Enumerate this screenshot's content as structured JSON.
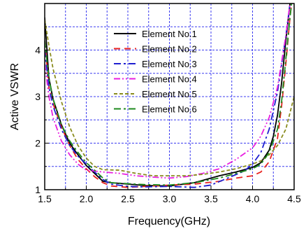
{
  "chart_data": {
    "type": "line",
    "xlabel": "Frequency(GHz)",
    "ylabel": "Active VSWR",
    "xlim": [
      1.5,
      4.5
    ],
    "ylim": [
      1,
      5
    ],
    "xticks": [
      "1.5",
      "2.0",
      "2.5",
      "3.0",
      "3.5",
      "4.0",
      "4.5"
    ],
    "yticks": [
      "1",
      "2",
      "3",
      "4"
    ],
    "grid": true,
    "legend_position": "upper-center",
    "series": [
      {
        "name": "Element No.1",
        "color": "#000000",
        "dash": "solid",
        "x": [
          1.5,
          1.55,
          1.6,
          1.7,
          1.8,
          1.9,
          2.0,
          2.1,
          2.2,
          2.3,
          2.5,
          2.7,
          3.0,
          3.3,
          3.6,
          3.8,
          4.0,
          4.1,
          4.2,
          4.25,
          4.3,
          4.35,
          4.4,
          4.45,
          4.5
        ],
        "y": [
          4.7,
          3.4,
          2.95,
          2.4,
          2.0,
          1.75,
          1.52,
          1.35,
          1.18,
          1.15,
          1.12,
          1.09,
          1.08,
          1.15,
          1.3,
          1.38,
          1.48,
          1.58,
          1.85,
          2.15,
          2.6,
          3.3,
          4.2,
          5.0,
          5.5
        ]
      },
      {
        "name": "Element No.2",
        "color": "#e8221f",
        "dash": "dash",
        "x": [
          1.5,
          1.55,
          1.6,
          1.7,
          1.8,
          1.9,
          2.0,
          2.1,
          2.2,
          2.3,
          2.5,
          2.7,
          3.0,
          3.3,
          3.6,
          3.8,
          4.0,
          4.1,
          4.2,
          4.3,
          4.35,
          4.4,
          4.45,
          4.5
        ],
        "y": [
          4.2,
          3.2,
          2.85,
          2.35,
          1.95,
          1.65,
          1.45,
          1.28,
          1.15,
          1.08,
          1.05,
          1.07,
          1.1,
          1.12,
          1.18,
          1.25,
          1.3,
          1.38,
          1.6,
          2.1,
          2.8,
          3.7,
          4.7,
          5.5
        ]
      },
      {
        "name": "Element No.3",
        "color": "#1f1fd0",
        "dash": "dashdot",
        "x": [
          1.5,
          1.55,
          1.6,
          1.7,
          1.8,
          1.9,
          2.0,
          2.1,
          2.2,
          2.3,
          2.5,
          2.7,
          3.0,
          3.3,
          3.5,
          3.7,
          3.9,
          4.0,
          4.1,
          4.2,
          4.3,
          4.4,
          4.45,
          4.5
        ],
        "y": [
          4.0,
          3.2,
          2.8,
          2.3,
          1.95,
          1.72,
          1.55,
          1.38,
          1.22,
          1.12,
          1.07,
          1.06,
          1.07,
          1.05,
          1.1,
          1.25,
          1.4,
          1.55,
          1.8,
          2.3,
          3.1,
          4.3,
          5.0,
          5.5
        ]
      },
      {
        "name": "Element No.4",
        "color": "#e81fe0",
        "dash": "dashdotdot",
        "x": [
          1.5,
          1.55,
          1.6,
          1.7,
          1.8,
          1.9,
          2.0,
          2.2,
          2.4,
          2.6,
          2.8,
          3.0,
          3.2,
          3.4,
          3.6,
          3.8,
          4.0,
          4.1,
          4.2,
          4.3,
          4.4,
          4.45,
          4.5
        ],
        "y": [
          3.7,
          3.0,
          2.55,
          2.05,
          1.75,
          1.55,
          1.42,
          1.38,
          1.35,
          1.3,
          1.27,
          1.25,
          1.28,
          1.35,
          1.45,
          1.65,
          1.9,
          2.15,
          2.55,
          3.2,
          4.3,
          5.0,
          5.5
        ]
      },
      {
        "name": "Element No.5",
        "color": "#8a8c1e",
        "dash": "shortdash",
        "x": [
          1.5,
          1.55,
          1.6,
          1.7,
          1.8,
          1.9,
          2.0,
          2.1,
          2.2,
          2.4,
          2.6,
          2.8,
          3.0,
          3.2,
          3.4,
          3.6,
          3.8,
          4.0,
          4.1,
          4.2,
          4.3,
          4.4,
          4.5
        ],
        "y": [
          4.65,
          4.1,
          3.6,
          2.9,
          2.35,
          1.95,
          1.68,
          1.5,
          1.43,
          1.42,
          1.35,
          1.3,
          1.3,
          1.3,
          1.33,
          1.38,
          1.45,
          1.55,
          1.62,
          1.75,
          1.95,
          2.3,
          3.0
        ]
      },
      {
        "name": "Element No.6",
        "color": "#1e8a1e",
        "dash": "dashdot",
        "x": [
          1.5,
          1.55,
          1.6,
          1.7,
          1.8,
          1.9,
          2.0,
          2.1,
          2.2,
          2.3,
          2.5,
          2.7,
          3.0,
          3.3,
          3.6,
          3.8,
          4.0,
          4.1,
          4.2,
          4.3,
          4.35,
          4.4,
          4.45,
          4.5
        ],
        "y": [
          4.2,
          3.4,
          2.95,
          2.4,
          2.05,
          1.8,
          1.58,
          1.42,
          1.25,
          1.15,
          1.13,
          1.11,
          1.1,
          1.15,
          1.25,
          1.35,
          1.45,
          1.55,
          1.8,
          2.3,
          2.9,
          3.8,
          4.7,
          5.5
        ]
      }
    ]
  }
}
